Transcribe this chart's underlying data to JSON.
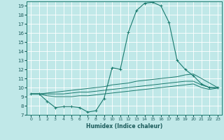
{
  "xlabel": "Humidex (Indice chaleur)",
  "bg_color": "#c0e8e8",
  "grid_color": "#ffffff",
  "line_color": "#1a7a6e",
  "xlim": [
    -0.5,
    23.5
  ],
  "ylim": [
    7,
    19.5
  ],
  "yticks": [
    7,
    8,
    9,
    10,
    11,
    12,
    13,
    14,
    15,
    16,
    17,
    18,
    19
  ],
  "xticks": [
    0,
    1,
    2,
    3,
    4,
    5,
    6,
    7,
    8,
    9,
    10,
    11,
    12,
    13,
    14,
    15,
    16,
    17,
    18,
    19,
    20,
    21,
    22,
    23
  ],
  "curves": [
    {
      "x": [
        0,
        1,
        2,
        3,
        4,
        5,
        6,
        7,
        8,
        9,
        10,
        11,
        12,
        13,
        14,
        15,
        16,
        17,
        18,
        19,
        20,
        21,
        22,
        23
      ],
      "y": [
        9.3,
        9.3,
        8.5,
        7.8,
        7.9,
        7.9,
        7.8,
        7.3,
        7.45,
        8.8,
        12.2,
        12.0,
        16.1,
        18.5,
        19.3,
        19.4,
        19.0,
        17.2,
        13.0,
        12.0,
        11.3,
        10.4,
        10.0,
        10.0
      ],
      "marker": true
    },
    {
      "x": [
        0,
        1,
        2,
        3,
        4,
        5,
        6,
        7,
        8,
        9,
        10,
        11,
        12,
        13,
        14,
        15,
        16,
        17,
        18,
        19,
        20,
        21,
        22,
        23
      ],
      "y": [
        9.3,
        9.3,
        9.4,
        9.5,
        9.6,
        9.7,
        9.8,
        9.9,
        10.0,
        10.1,
        10.3,
        10.4,
        10.5,
        10.7,
        10.8,
        10.9,
        11.0,
        11.1,
        11.2,
        11.4,
        11.5,
        11.0,
        10.5,
        10.0
      ],
      "marker": false
    },
    {
      "x": [
        0,
        1,
        2,
        3,
        4,
        5,
        6,
        7,
        8,
        9,
        10,
        11,
        12,
        13,
        14,
        15,
        16,
        17,
        18,
        19,
        20,
        21,
        22,
        23
      ],
      "y": [
        9.3,
        9.3,
        9.3,
        9.3,
        9.3,
        9.4,
        9.5,
        9.5,
        9.6,
        9.7,
        9.8,
        9.9,
        10.0,
        10.1,
        10.2,
        10.3,
        10.4,
        10.5,
        10.6,
        10.7,
        10.7,
        10.3,
        10.0,
        9.95
      ],
      "marker": false
    },
    {
      "x": [
        0,
        1,
        2,
        3,
        4,
        5,
        6,
        7,
        8,
        9,
        10,
        11,
        12,
        13,
        14,
        15,
        16,
        17,
        18,
        19,
        20,
        21,
        22,
        23
      ],
      "y": [
        9.3,
        9.3,
        9.1,
        9.0,
        9.0,
        9.0,
        9.1,
        9.1,
        9.2,
        9.3,
        9.4,
        9.5,
        9.6,
        9.7,
        9.8,
        9.9,
        10.0,
        10.1,
        10.2,
        10.3,
        10.4,
        10.0,
        9.8,
        9.95
      ],
      "marker": false
    }
  ]
}
